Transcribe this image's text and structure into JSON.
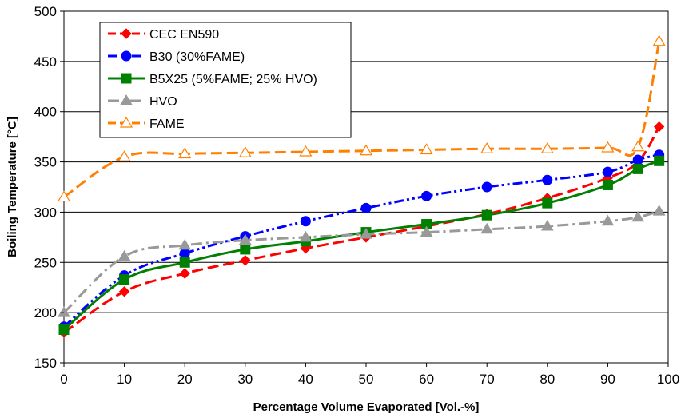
{
  "chart_data": {
    "type": "line",
    "xlabel": "Percentage Volume Evaporated [Vol.-%]",
    "ylabel": "Boiling Temperature [°C]",
    "xlim": [
      0,
      100
    ],
    "ylim": [
      150,
      500
    ],
    "xticks": [
      0,
      10,
      20,
      30,
      40,
      50,
      60,
      70,
      80,
      90,
      100
    ],
    "yticks": [
      150,
      200,
      250,
      300,
      350,
      400,
      450,
      500
    ],
    "grid": "horizontal",
    "legend_position": "top-left",
    "series": [
      {
        "name": "CEC EN590",
        "color": "#ff0000",
        "marker": "diamond",
        "dash": "long-dash",
        "smooth": true,
        "x": [
          0,
          10,
          20,
          30,
          40,
          50,
          60,
          70,
          80,
          90,
          95,
          98.5
        ],
        "y": [
          180,
          221,
          239,
          252,
          264,
          275,
          286,
          298,
          314,
          334,
          350,
          385
        ]
      },
      {
        "name": "B30 (30%FAME)",
        "color": "#0000ff",
        "marker": "circle",
        "dash": "dash-dot-dot",
        "smooth": true,
        "x": [
          0,
          10,
          20,
          30,
          40,
          50,
          60,
          70,
          80,
          90,
          95,
          98.5
        ],
        "y": [
          186,
          237,
          259,
          276,
          291,
          304,
          316,
          325,
          332,
          340,
          352,
          357
        ]
      },
      {
        "name": "B5X25 (5%FAME; 25% HVO)",
        "color": "#008000",
        "marker": "square",
        "dash": "solid",
        "smooth": true,
        "x": [
          0,
          10,
          20,
          30,
          40,
          50,
          60,
          70,
          80,
          90,
          95,
          98.5
        ],
        "y": [
          183,
          233,
          250,
          263,
          271,
          280,
          288,
          297,
          309,
          327,
          343,
          351
        ]
      },
      {
        "name": "HVO",
        "color": "#999999",
        "marker": "triangle",
        "dash": "dash-dot",
        "smooth": true,
        "x": [
          0,
          10,
          20,
          30,
          40,
          50,
          60,
          70,
          80,
          90,
          95,
          98.5
        ],
        "y": [
          200,
          256,
          267,
          272,
          275,
          278,
          280,
          283,
          286,
          291,
          295,
          301
        ]
      },
      {
        "name": "FAME",
        "color": "#ff8000",
        "marker": "open-triangle",
        "dash": "long-dash",
        "smooth": true,
        "x": [
          0,
          10,
          20,
          30,
          40,
          50,
          60,
          70,
          80,
          90,
          95,
          98.5
        ],
        "y": [
          315,
          355,
          358,
          359,
          360,
          361,
          362,
          363,
          363,
          364,
          365,
          470
        ]
      }
    ]
  }
}
